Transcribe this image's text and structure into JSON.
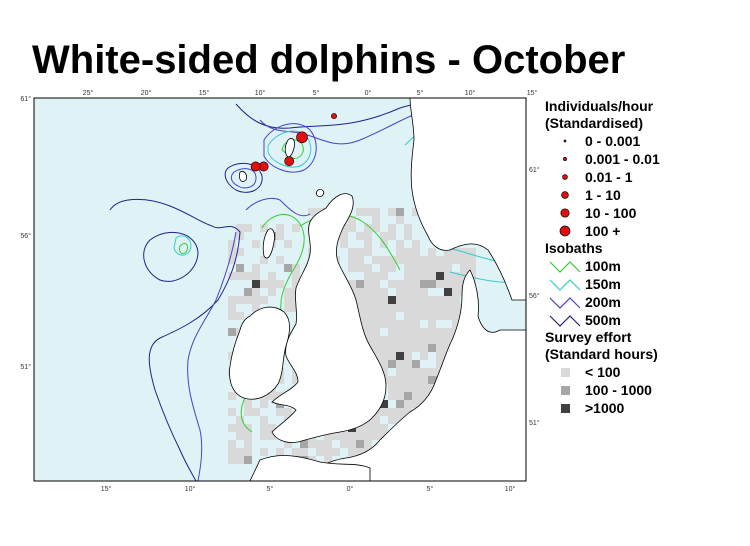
{
  "title": "White-sided dolphins - October",
  "map": {
    "top_ticks": [
      "25°",
      "20°",
      "15°",
      "10°",
      "5°",
      "0°",
      "5°",
      "10°",
      "15°"
    ],
    "bottom_ticks": [
      "15°",
      "10°",
      "5°",
      "0°",
      "5°",
      "10°"
    ],
    "left_ticks": [
      "61°",
      "56°",
      "51°"
    ],
    "right_ticks": [
      "61°",
      "56°",
      "51°"
    ],
    "colors": {
      "sea": "#dff3f6",
      "land": "#ffffff",
      "coast": "#000000",
      "effort_low": "#d9d9d9",
      "effort_mid": "#a6a6a6",
      "effort_high": "#404040",
      "isobath_100": "#33cc33",
      "isobath_150": "#33cccc",
      "isobath_200": "#4444cc",
      "isobath_500": "#222288",
      "sighting": "#e01010"
    },
    "sightings": [
      {
        "class": "100 +",
        "lat": 59.8,
        "lon": -3.0
      },
      {
        "class": "10 - 100",
        "lat": 58.7,
        "lon": -5.4
      },
      {
        "class": "10 - 100",
        "lat": 58.7,
        "lon": -5.9
      },
      {
        "class": "10 - 100",
        "lat": 58.9,
        "lon": -3.8
      },
      {
        "class": "0.01 - 1",
        "lat": 60.6,
        "lon": -1.0
      }
    ]
  },
  "legend": {
    "sightings_title_1": "Individuals/hour",
    "sightings_title_2": "(Standardised)",
    "sightings": [
      {
        "label": "0 - 0.001",
        "size": 1
      },
      {
        "label": "0.001 - 0.01",
        "size": 2
      },
      {
        "label": "0.01 - 1",
        "size": 3
      },
      {
        "label": "1 - 10",
        "size": 4
      },
      {
        "label": "10 - 100",
        "size": 5
      },
      {
        "label": "100 +",
        "size": 6
      }
    ],
    "isobaths_title": "Isobaths",
    "isobaths": [
      {
        "label": "100m",
        "color": "#33cc33"
      },
      {
        "label": "150m",
        "color": "#33cccc"
      },
      {
        "label": "200m",
        "color": "#4444cc"
      },
      {
        "label": "500m",
        "color": "#222288"
      }
    ],
    "effort_title_1": "Survey effort",
    "effort_title_2": "(Standard hours)",
    "effort": [
      {
        "label": "< 100",
        "color": "#d9d9d9"
      },
      {
        "label": "100 - 1000",
        "color": "#a6a6a6"
      },
      {
        "label": ">1000",
        "color": "#404040"
      }
    ]
  }
}
